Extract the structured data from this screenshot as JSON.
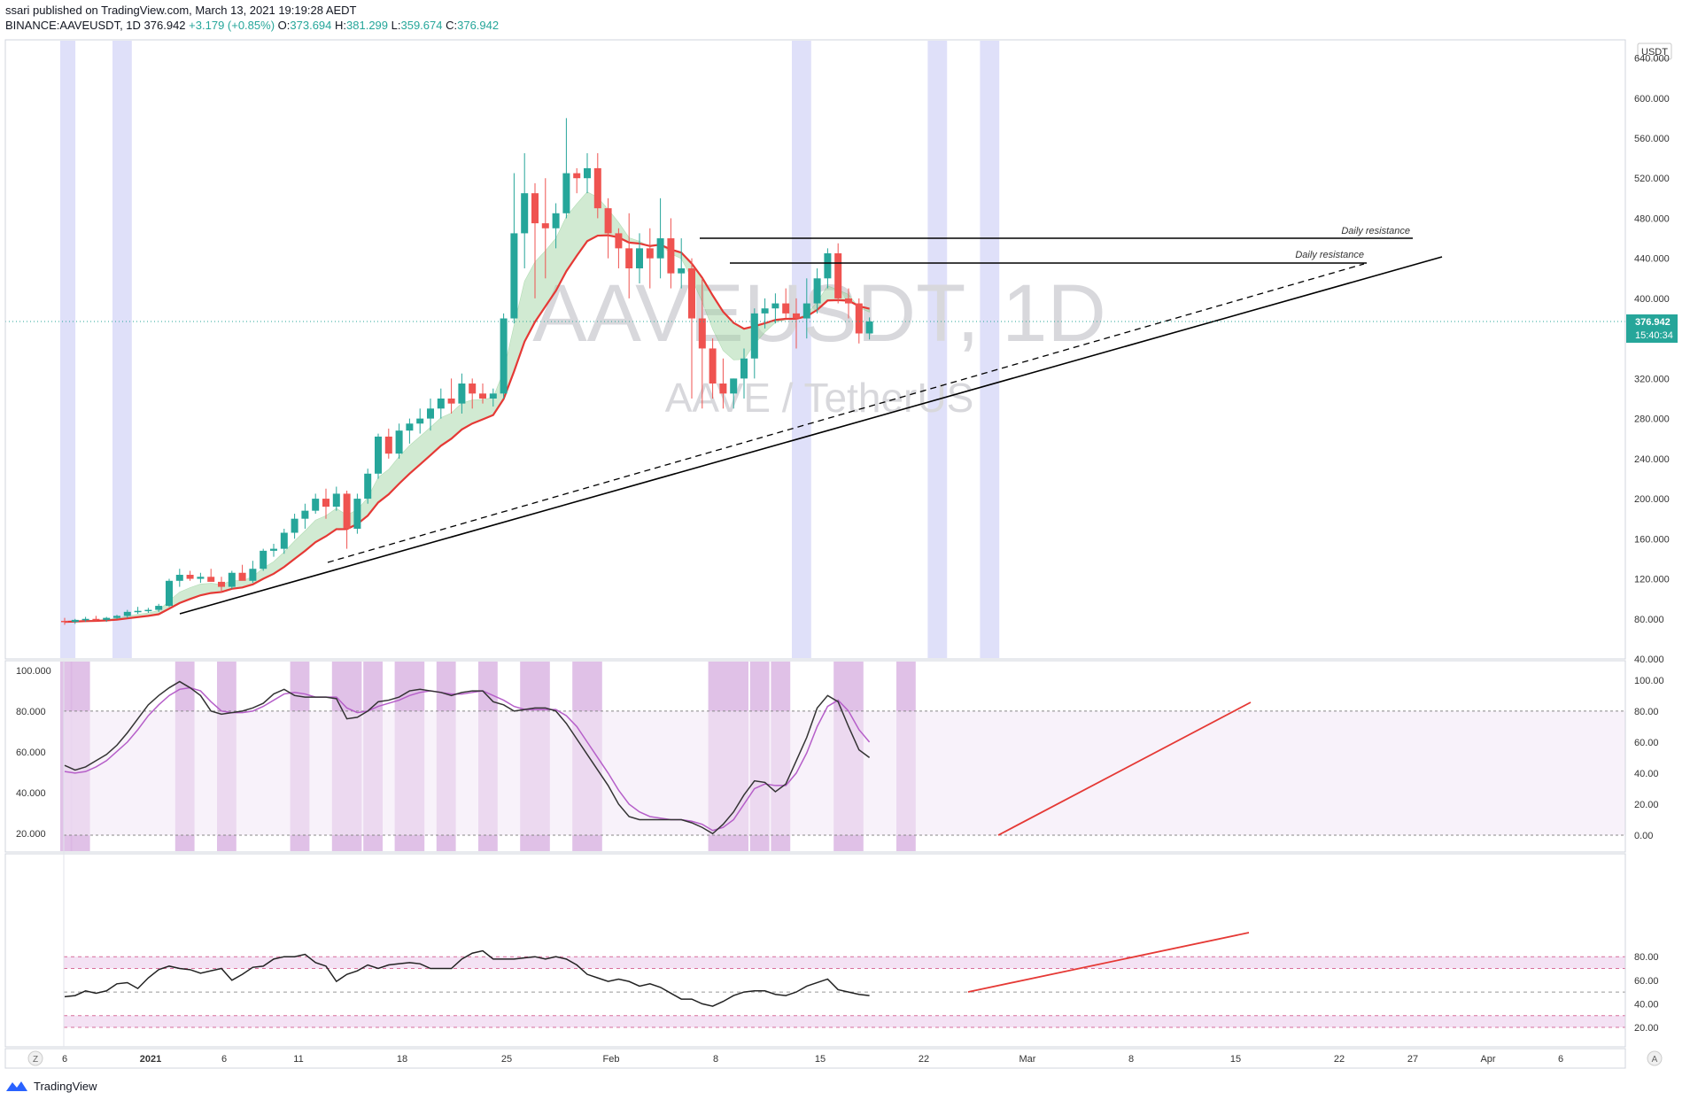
{
  "header": {
    "line1": "ssari published on TradingView.com, March 13, 2021 19:19:28 AEDT",
    "symbol": "BINANCE:AAVEUSDT, 1D",
    "last": "376.942",
    "change": "+3.179 (+0.85%)",
    "o_label": "O:",
    "o": "373.694",
    "h_label": "H:",
    "h": "381.299",
    "l_label": "L:",
    "l": "359.674",
    "c_label": "C:",
    "c": "376.942"
  },
  "watermark": {
    "symbol": "AAVEUSDT, 1D",
    "desc": "AAVE / TetherUS"
  },
  "price_axis": {
    "currency": "USDT",
    "ticks": [
      "640.000",
      "600.000",
      "560.000",
      "520.000",
      "480.000",
      "440.000",
      "400.000",
      "360.000",
      "320.000",
      "280.000",
      "240.000",
      "200.000",
      "160.000",
      "120.000",
      "80.000",
      "40.000"
    ],
    "last_price": "376.942",
    "countdown": "15:40:34"
  },
  "stoch_axis": {
    "left_ticks": [
      "100.000",
      "80.000",
      "60.000",
      "40.000",
      "20.000"
    ],
    "right_ticks": [
      "100.00",
      "80.00",
      "60.00",
      "40.00",
      "20.00",
      "0.00"
    ]
  },
  "rsi_axis": {
    "right_ticks": [
      "80.00",
      "60.00",
      "40.00",
      "20.00"
    ]
  },
  "time_axis": {
    "labels": [
      "6",
      "2021",
      "6",
      "11",
      "18",
      "25",
      "Feb",
      "8",
      "15",
      "22",
      "Mar",
      "8",
      "15",
      "22",
      "27",
      "Apr",
      "6"
    ],
    "left_button": "Z",
    "right_button": "A"
  },
  "annotations": {
    "resistance_1": "Daily resistance",
    "resistance_2": "Daily resistance"
  },
  "footer": {
    "brand": "TradingView"
  },
  "colors": {
    "up": "#26a69a",
    "down": "#ef5350",
    "ema": "#e53935",
    "cloud": "#a5d6a7",
    "highlight_blue": "#d9dbf8",
    "highlight_purple": "#dbb6e3",
    "stoch_k": "#333333",
    "stoch_d": "#b65fc9",
    "trend": "#e53935"
  },
  "chart_data": [
    {
      "type": "candlestick",
      "title": "AAVE / TetherUS",
      "x": [
        "2020-12-26",
        "2020-12-27",
        "2020-12-28",
        "2020-12-29",
        "2020-12-30",
        "2020-12-31",
        "2021-01-01",
        "2021-01-02",
        "2021-01-03",
        "2021-01-04",
        "2021-01-05",
        "2021-01-06",
        "2021-01-07",
        "2021-01-08",
        "2021-01-09",
        "2021-01-10",
        "2021-01-11",
        "2021-01-12",
        "2021-01-13",
        "2021-01-14",
        "2021-01-15",
        "2021-01-16",
        "2021-01-17",
        "2021-01-18",
        "2021-01-19",
        "2021-01-20",
        "2021-01-21",
        "2021-01-22",
        "2021-01-23",
        "2021-01-24",
        "2021-01-25",
        "2021-01-26",
        "2021-01-27",
        "2021-01-28",
        "2021-01-29",
        "2021-01-30",
        "2021-01-31",
        "2021-02-01",
        "2021-02-02",
        "2021-02-03",
        "2021-02-04",
        "2021-02-05",
        "2021-02-06",
        "2021-02-07",
        "2021-02-08",
        "2021-02-09",
        "2021-02-10",
        "2021-02-11",
        "2021-02-12",
        "2021-02-13",
        "2021-02-14",
        "2021-02-15",
        "2021-02-16",
        "2021-02-17",
        "2021-02-18",
        "2021-02-19",
        "2021-02-20",
        "2021-02-21",
        "2021-02-22",
        "2021-02-23",
        "2021-02-24",
        "2021-02-25",
        "2021-02-26",
        "2021-02-27",
        "2021-02-28",
        "2021-03-01",
        "2021-03-02",
        "2021-03-03",
        "2021-03-04",
        "2021-03-05",
        "2021-03-06",
        "2021-03-07",
        "2021-03-08",
        "2021-03-09",
        "2021-03-10",
        "2021-03-11",
        "2021-03-12",
        "2021-03-13"
      ],
      "ohlc": [
        [
          78,
          81,
          74,
          77
        ],
        [
          77,
          80,
          75,
          79
        ],
        [
          79,
          82,
          77,
          80
        ],
        [
          80,
          83,
          78,
          79
        ],
        [
          79,
          82,
          77,
          81
        ],
        [
          81,
          84,
          80,
          83
        ],
        [
          83,
          89,
          81,
          87
        ],
        [
          87,
          92,
          85,
          88
        ],
        [
          88,
          91,
          86,
          89
        ],
        [
          89,
          95,
          87,
          93
        ],
        [
          93,
          120,
          92,
          118
        ],
        [
          118,
          130,
          112,
          124
        ],
        [
          124,
          128,
          118,
          120
        ],
        [
          120,
          126,
          116,
          122
        ],
        [
          122,
          130,
          118,
          117
        ],
        [
          117,
          122,
          106,
          112
        ],
        [
          112,
          128,
          110,
          126
        ],
        [
          126,
          134,
          120,
          118
        ],
        [
          118,
          138,
          116,
          130
        ],
        [
          130,
          150,
          128,
          148
        ],
        [
          148,
          155,
          142,
          150
        ],
        [
          150,
          170,
          145,
          166
        ],
        [
          166,
          185,
          160,
          180
        ],
        [
          180,
          195,
          170,
          188
        ],
        [
          188,
          205,
          185,
          200
        ],
        [
          200,
          210,
          180,
          192
        ],
        [
          192,
          212,
          188,
          205
        ],
        [
          205,
          208,
          150,
          170
        ],
        [
          170,
          205,
          165,
          200
        ],
        [
          200,
          230,
          195,
          225
        ],
        [
          225,
          265,
          220,
          262
        ],
        [
          262,
          270,
          240,
          245
        ],
        [
          245,
          275,
          240,
          268
        ],
        [
          268,
          280,
          255,
          275
        ],
        [
          275,
          290,
          265,
          280
        ],
        [
          280,
          300,
          268,
          290
        ],
        [
          290,
          310,
          280,
          300
        ],
        [
          300,
          320,
          285,
          295
        ],
        [
          295,
          325,
          285,
          315
        ],
        [
          315,
          320,
          290,
          305
        ],
        [
          305,
          315,
          295,
          300
        ],
        [
          300,
          310,
          292,
          305
        ],
        [
          305,
          385,
          300,
          380
        ],
        [
          380,
          525,
          375,
          465
        ],
        [
          465,
          545,
          430,
          505
        ],
        [
          505,
          515,
          400,
          475
        ],
        [
          475,
          520,
          420,
          470
        ],
        [
          470,
          495,
          450,
          485
        ],
        [
          485,
          580,
          480,
          525
        ],
        [
          525,
          530,
          505,
          520
        ],
        [
          520,
          545,
          505,
          530
        ],
        [
          530,
          545,
          480,
          490
        ],
        [
          490,
          500,
          440,
          465
        ],
        [
          465,
          470,
          430,
          450
        ],
        [
          450,
          485,
          400,
          430
        ],
        [
          430,
          465,
          415,
          450
        ],
        [
          450,
          470,
          410,
          440
        ],
        [
          440,
          500,
          420,
          460
        ],
        [
          460,
          480,
          410,
          425
        ],
        [
          425,
          460,
          410,
          430
        ],
        [
          430,
          440,
          300,
          380
        ],
        [
          380,
          420,
          290,
          350
        ],
        [
          350,
          360,
          300,
          315
        ],
        [
          315,
          340,
          290,
          305
        ],
        [
          305,
          320,
          290,
          320
        ],
        [
          320,
          350,
          300,
          340
        ],
        [
          340,
          390,
          320,
          385
        ],
        [
          385,
          400,
          370,
          390
        ],
        [
          390,
          405,
          375,
          395
        ],
        [
          395,
          410,
          380,
          385
        ],
        [
          385,
          400,
          350,
          380
        ],
        [
          380,
          420,
          360,
          395
        ],
        [
          395,
          430,
          385,
          420
        ],
        [
          420,
          450,
          410,
          445
        ],
        [
          445,
          455,
          395,
          400
        ],
        [
          400,
          410,
          380,
          395
        ],
        [
          395,
          400,
          355,
          365
        ],
        [
          365,
          381,
          359,
          377
        ]
      ],
      "ylim": [
        40,
        640
      ]
    },
    {
      "type": "line",
      "title": "Stochastic",
      "series": [
        {
          "values": [
            45,
            42,
            44,
            48,
            52,
            58,
            66,
            75,
            84,
            90,
            95,
            99,
            95,
            90,
            80,
            78,
            79,
            80,
            82,
            85,
            91,
            94,
            90,
            89,
            89,
            89,
            88,
            75,
            76,
            80,
            86,
            87,
            89,
            93,
            94,
            93,
            92,
            90,
            92,
            93,
            93,
            86,
            84,
            80,
            81,
            82,
            82,
            80,
            72,
            62,
            52,
            42,
            32,
            20,
            12,
            10,
            10,
            10,
            10,
            10,
            8,
            5,
            1,
            7,
            15,
            26,
            35,
            34,
            28,
            33,
            48,
            63,
            82,
            90,
            86,
            70,
            55,
            50
          ]
        },
        {
          "values": [
            41,
            40,
            41,
            44,
            48,
            54,
            60,
            68,
            77,
            84,
            90,
            94,
            95,
            93,
            86,
            80,
            79,
            79,
            80,
            83,
            87,
            91,
            92,
            91,
            89,
            89,
            89,
            82,
            79,
            80,
            83,
            85,
            87,
            90,
            92,
            93,
            92,
            91,
            91,
            92,
            93,
            90,
            87,
            83,
            81,
            81,
            81,
            81,
            77,
            70,
            60,
            50,
            40,
            29,
            20,
            15,
            12,
            11,
            10,
            10,
            9,
            7,
            3,
            5,
            10,
            20,
            30,
            33,
            32,
            32,
            40,
            53,
            70,
            83,
            87,
            80,
            68,
            60
          ]
        }
      ],
      "ylim": [
        0,
        100
      ]
    },
    {
      "type": "line",
      "title": "RSI",
      "series": [
        {
          "values": [
            46,
            47,
            51,
            49,
            51,
            57,
            58,
            53,
            62,
            69,
            72,
            70,
            69,
            66,
            68,
            70,
            60,
            65,
            71,
            72,
            78,
            80,
            80,
            82,
            75,
            72,
            59,
            65,
            68,
            73,
            70,
            73,
            74,
            75,
            74,
            70,
            70,
            70,
            78,
            83,
            85,
            78,
            78,
            78,
            79,
            80,
            78,
            80,
            78,
            73,
            65,
            62,
            59,
            61,
            59,
            55,
            57,
            54,
            49,
            44,
            44,
            40,
            38,
            42,
            47,
            50,
            51,
            51,
            48,
            47,
            50,
            55,
            58,
            61,
            52,
            50,
            48,
            47
          ]
        }
      ],
      "ylim": [
        15,
        90
      ]
    }
  ]
}
